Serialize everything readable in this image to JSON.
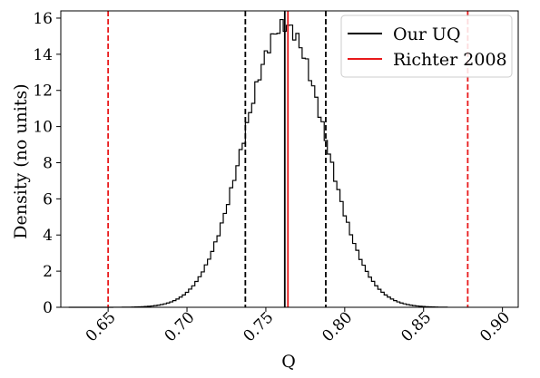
{
  "chart_data": {
    "type": "histogram",
    "xlabel": "Q",
    "ylabel": "Density (no units)",
    "xlim": [
      0.62,
      0.91
    ],
    "ylim": [
      0,
      16.4
    ],
    "x_ticks": [
      0.65,
      0.7,
      0.75,
      0.8,
      0.85,
      0.9
    ],
    "x_tick_labels": [
      "0.65",
      "0.70",
      "0.75",
      "0.80",
      "0.85",
      "0.90"
    ],
    "y_ticks": [
      0,
      2,
      4,
      6,
      8,
      10,
      12,
      14,
      16
    ],
    "y_tick_labels": [
      "0",
      "2",
      "4",
      "6",
      "8",
      "10",
      "12",
      "14",
      "16"
    ],
    "grid": false,
    "legend_position": "top-right",
    "histogram": {
      "color": "#000000",
      "mean": 0.762,
      "sd": 0.0256,
      "x_range": [
        0.625,
        0.865
      ],
      "bin_width": 0.002
    },
    "series": [
      {
        "name": "Our UQ",
        "color": "#000000",
        "central": 0.762,
        "bounds": [
          0.737,
          0.788
        ]
      },
      {
        "name": "Richter 2008",
        "color": "#e8191b",
        "central": 0.764,
        "bounds": [
          0.65,
          0.878
        ]
      }
    ]
  }
}
